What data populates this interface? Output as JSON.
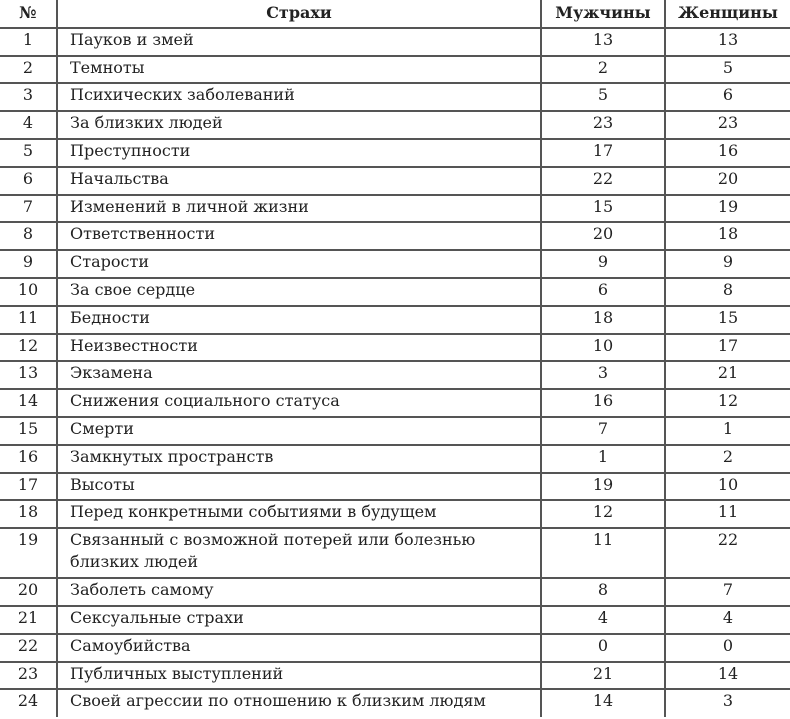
{
  "headers": {
    "num": "№",
    "fear": "Страхи",
    "men": "Мужчины",
    "women": "Женщины"
  },
  "rows": [
    {
      "num": "1",
      "fear": "Пауков и змей",
      "men": "13",
      "women": "13"
    },
    {
      "num": "2",
      "fear": "Темноты",
      "men": "2",
      "women": "5"
    },
    {
      "num": "3",
      "fear": "Психических заболеваний",
      "men": "5",
      "women": "6"
    },
    {
      "num": "4",
      "fear": "За близких людей",
      "men": "23",
      "women": "23"
    },
    {
      "num": "5",
      "fear": "Преступности",
      "men": "17",
      "women": "16"
    },
    {
      "num": "6",
      "fear": "Начальства",
      "men": "22",
      "women": "20"
    },
    {
      "num": "7",
      "fear": "Изменений в личной жизни",
      "men": "15",
      "women": "19"
    },
    {
      "num": "8",
      "fear": "Ответственности",
      "men": "20",
      "women": "18"
    },
    {
      "num": "9",
      "fear": "Старости",
      "men": "9",
      "women": "9"
    },
    {
      "num": "10",
      "fear": "За свое сердце",
      "men": "6",
      "women": "8"
    },
    {
      "num": "11",
      "fear": "Бедности",
      "men": "18",
      "women": "15"
    },
    {
      "num": "12",
      "fear": "Неизвестности",
      "men": "10",
      "women": "17"
    },
    {
      "num": "13",
      "fear": "Экзамена",
      "men": "3",
      "women": "21"
    },
    {
      "num": "14",
      "fear": "Снижения социального статуса",
      "men": "16",
      "women": "12"
    },
    {
      "num": "15",
      "fear": "Смерти",
      "men": "7",
      "women": "1"
    },
    {
      "num": "16",
      "fear": "Замкнутых пространств",
      "men": "1",
      "women": "2"
    },
    {
      "num": "17",
      "fear": "Высоты",
      "men": "19",
      "women": "10"
    },
    {
      "num": "18",
      "fear": "Перед конкретными событиями в будущем",
      "men": "12",
      "women": "11"
    },
    {
      "num": "19",
      "fear": "Связанный с возможной потерей или болезнью близких людей",
      "men": "11",
      "women": "22"
    },
    {
      "num": "20",
      "fear": "Заболеть самому",
      "men": "8",
      "women": "7"
    },
    {
      "num": "21",
      "fear": "Сексуальные страхи",
      "men": "4",
      "women": "4"
    },
    {
      "num": "22",
      "fear": "Самоубийства",
      "men": "0",
      "women": "0"
    },
    {
      "num": "23",
      "fear": "Публичных выступлений",
      "men": "21",
      "women": "14"
    },
    {
      "num": "24",
      "fear": "Своей агрессии по отношению к близким людям",
      "men": "14",
      "women": "3"
    }
  ]
}
